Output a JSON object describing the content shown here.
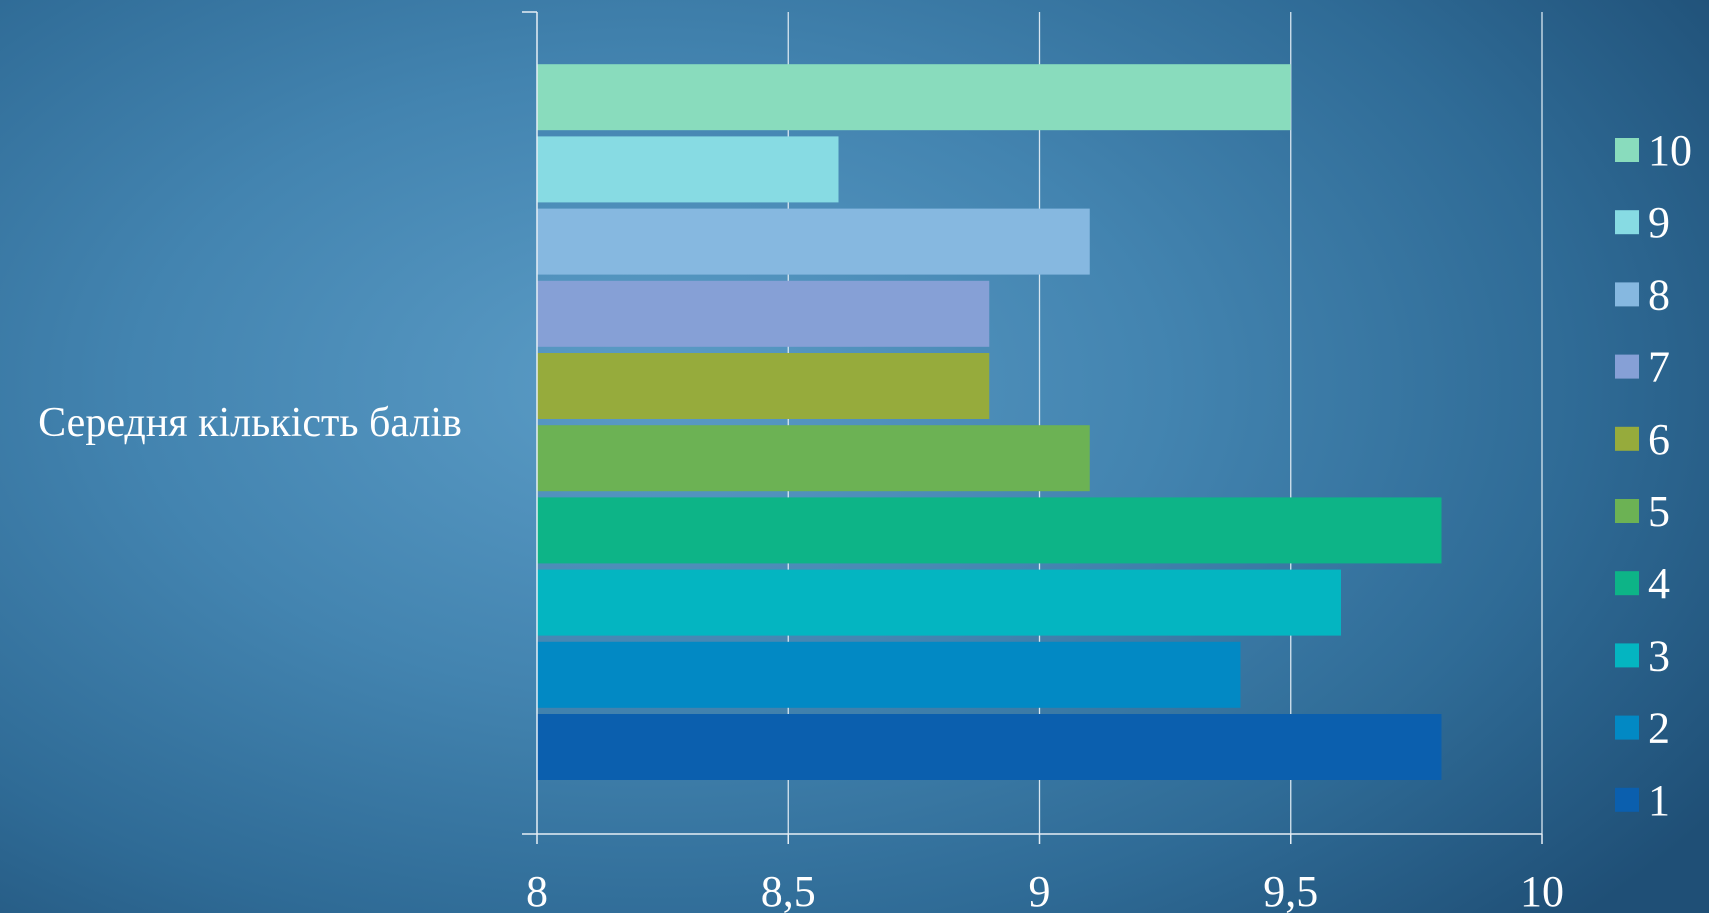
{
  "chart_data": {
    "type": "bar",
    "orientation": "horizontal",
    "category": "Середня кількість балів",
    "series": [
      {
        "name": "1",
        "value": 9.8,
        "color": "#0b5fae"
      },
      {
        "name": "2",
        "value": 9.4,
        "color": "#0289c4"
      },
      {
        "name": "3",
        "value": 9.6,
        "color": "#04b5c1"
      },
      {
        "name": "4",
        "value": 9.8,
        "color": "#0db487"
      },
      {
        "name": "5",
        "value": 9.1,
        "color": "#6cb254"
      },
      {
        "name": "6",
        "value": 8.9,
        "color": "#96ab3c"
      },
      {
        "name": "7",
        "value": 8.9,
        "color": "#86a0d6"
      },
      {
        "name": "8",
        "value": 9.1,
        "color": "#86b8e0"
      },
      {
        "name": "9",
        "value": 8.6,
        "color": "#87dbe3"
      },
      {
        "name": "10",
        "value": 9.5,
        "color": "#89dcbd"
      }
    ],
    "xlim": [
      8,
      10
    ],
    "xticks": [
      8,
      8.5,
      9,
      9.5,
      10
    ],
    "xtick_labels": [
      "8",
      "8,5",
      "9",
      "9,5",
      "10"
    ],
    "grid": "vertical",
    "legend": "right"
  }
}
